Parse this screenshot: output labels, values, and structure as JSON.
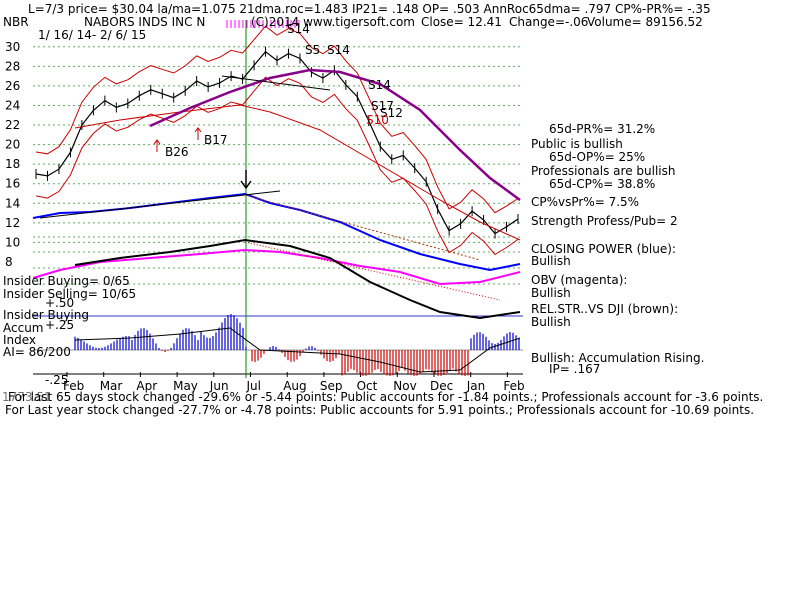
{
  "header": {
    "line1": "L=7/3  price= $30.04  la/ma=1.075 21dma.roc=1.483 IP21= .148 OP= .503 AnnRoc65dma= .797 CP%-PR%= -.35",
    "ticker": "NBR",
    "company": "NABORS INDS INC N",
    "copyright": "(C)2014 www.tigersoft.com",
    "close": "Close=  12.41",
    "change": "Change=-.06",
    "volume": "Volume= 89156.52",
    "date_range": "1/ 16/ 14- 2/ 6/ 15"
  },
  "signals": {
    "s14_top": "S14",
    "s5": "S5",
    "s14_b": "S14",
    "s14_c": "S14",
    "s17": "S17",
    "s12": "S12",
    "s10": "S10",
    "b26": "B26",
    "b17": "B17"
  },
  "right_panel": {
    "pct_65d": "65d-PR%= 31.2%",
    "public_bullish": "Public is bullish",
    "op_65d": "65d-OP%= 25%",
    "pros_bullish": "Professionals are bullish",
    "cp_65d": "65d-CP%= 38.8%",
    "cpvspr": "CP%vsPr%=  7.5%",
    "strength": "Strength Profess/Pub= 2",
    "closing_power": "CLOSING POWER (blue):",
    "closing_power_val": "Bullish",
    "obv": "OBV (magenta):",
    "obv_val": "Bullish",
    "relstr": "REL.STR..VS DJI (brown):",
    "relstr_val": "Bullish",
    "accum": "Bullish: Accumulation Rising.",
    "ip": "IP=  .167"
  },
  "left_panel": {
    "insider_buying": "Insider Buying= 0/65",
    "insider_selling": "Insider Selling= 10/65",
    "plus50": "+.50",
    "insider_buying2": "Insider Buying",
    "accum": "Accum",
    "plus25": "+.25",
    "index": "Index",
    "ai": "AI= 86/200",
    "minus25": "-.25"
  },
  "footer": {
    "line1_prefix": "For last 65 days stock changed -29.6% or -5.44 points:  Public accounts for  -1.84 points.;  Professionals account for -3.6 points.",
    "overlap": "1773.51",
    "line2": "For Last year stock changed -27.7% or -4.78 points:  Public accounts for  5.91 points.;  Professionals account for -10.69 points."
  },
  "chart_data": {
    "type": "line",
    "x_labels": [
      "Feb",
      "Mar",
      "Apr",
      "May",
      "Jun",
      "Jul",
      "Aug",
      "Sep",
      "Oct",
      "Nov",
      "Dec",
      "Jan",
      "Feb"
    ],
    "y_ticks": [
      30,
      28,
      26,
      24,
      22,
      20,
      18,
      16,
      14,
      12,
      10,
      8
    ],
    "ylim": [
      8,
      31
    ],
    "series": [
      {
        "values": [
          17.0,
          16.8,
          17.5,
          19.2,
          22.0,
          23.5,
          24.5,
          23.8,
          24.2,
          25.0,
          25.6,
          25.2,
          24.8,
          25.5,
          26.5,
          25.9,
          26.3,
          27.0,
          26.7,
          28.1,
          29.5,
          28.6,
          29.3,
          28.8,
          27.4,
          26.8,
          27.6,
          26.1,
          24.9,
          22.4,
          19.8,
          18.5,
          18.9,
          17.6,
          16.2,
          13.4,
          11.2,
          11.9,
          13.2,
          12.3,
          10.9,
          11.6,
          12.4
        ]
      }
    ],
    "colors": {
      "price": "#000000",
      "bands": "#cc0000",
      "ma": "#880088",
      "closing_power": "#0000ff",
      "obv": "#ff00ff",
      "relstr": "#000000",
      "grid": "#66aa66",
      "signal_line": "#008800",
      "accum_pos": "#0000cc",
      "accum_neg": "#cc0000"
    }
  }
}
